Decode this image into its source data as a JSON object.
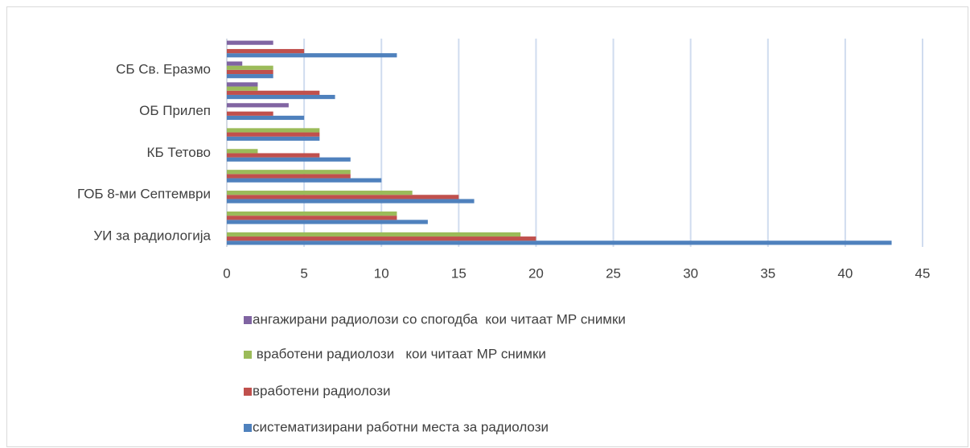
{
  "chart_data": {
    "type": "bar",
    "orientation": "horizontal",
    "categories": [
      "УИ за радиологија",
      null,
      "ГОБ 8-ми Септември",
      null,
      "КБ Тетово",
      null,
      "ОБ Прилеп",
      null,
      "СБ Св. Еразмо",
      null
    ],
    "series": [
      {
        "name": "систематизирани работни места за радиолози",
        "color": "#4f81bd",
        "values": [
          43,
          13,
          16,
          10,
          8,
          6,
          5,
          7,
          3,
          11
        ]
      },
      {
        "name": "вработени радиолози",
        "color": "#c0504d",
        "values": [
          20,
          11,
          15,
          8,
          6,
          6,
          3,
          6,
          3,
          5
        ]
      },
      {
        "name": " вработени радиолози   кои читаат МР снимки",
        "color": "#9bbb59",
        "values": [
          19,
          11,
          12,
          8,
          2,
          6,
          0,
          2,
          3,
          0
        ]
      },
      {
        "name": "ангажирани радиолози со спогодба  кои читаат МР снимки",
        "color": "#8064a2",
        "values": [
          0,
          0,
          0,
          0,
          0,
          0,
          4,
          2,
          1,
          3
        ]
      }
    ],
    "xlim": [
      0,
      45
    ],
    "xticks": [
      0,
      5,
      10,
      15,
      20,
      25,
      30,
      35,
      40,
      45
    ],
    "grid": true
  }
}
